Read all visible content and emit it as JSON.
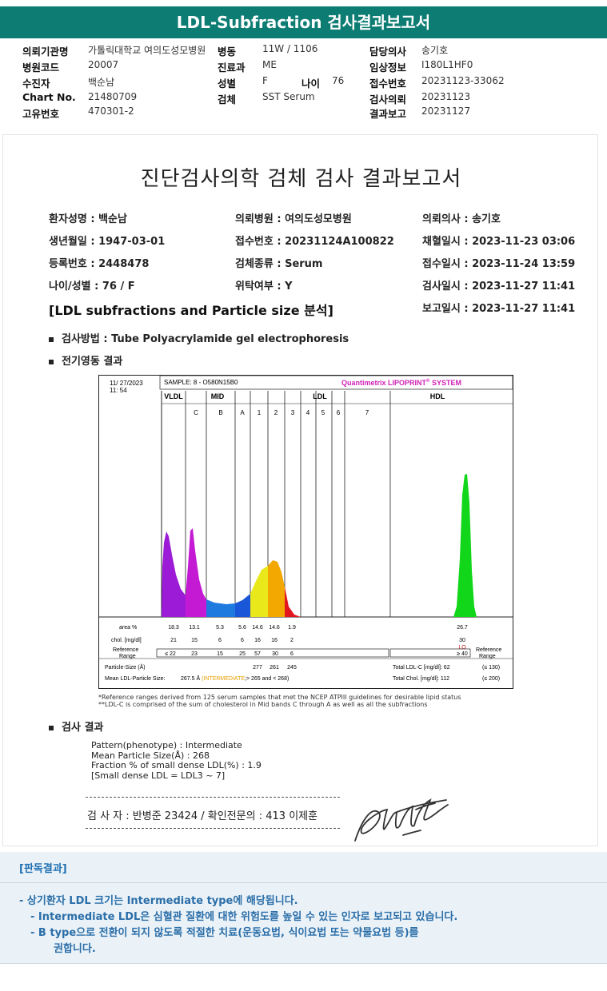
{
  "title": "LDL-Subfraction 검사결과보고서",
  "header": {
    "rows": [
      [
        {
          "label": "의뢰기관명",
          "value": "가톨릭대학교 여의도성모병원"
        },
        {
          "label": "병동",
          "value": "11W / 1106"
        },
        {
          "label": "담당의사",
          "value": "송기호"
        }
      ],
      [
        {
          "label": "병원코드",
          "value": "20007"
        },
        {
          "label": "진료과",
          "value": "ME"
        },
        {
          "label": "임상정보",
          "value": "I180L1HF0"
        }
      ],
      [
        {
          "label": "수진자",
          "value": "백순남"
        },
        {
          "label": "성별",
          "value": "F"
        },
        {
          "label": "접수번호",
          "value": "20231123-33062"
        }
      ],
      [
        {
          "label": "Chart No.",
          "value": "21480709"
        },
        {
          "label": "검체",
          "value": "SST Serum"
        },
        {
          "label": "검사의뢰",
          "value": "20231123"
        }
      ],
      [
        {
          "label": "고유번호",
          "value": "470301-2"
        },
        {
          "label": "",
          "value": ""
        },
        {
          "label": "결과보고",
          "value": "20231127"
        }
      ]
    ],
    "age_label": "나이",
    "age_value": "76"
  },
  "report": {
    "title": "진단검사의학 검체 검사 결과보고서",
    "info": [
      [
        "환자성명 : 백순남",
        "의뢰병원 : 여의도성모병원",
        "의뢰의사 : 송기호"
      ],
      [
        "생년월일 : 1947-03-01",
        "접수번호 : 20231124A100822",
        "채혈일시 : 2023-11-23 03:06"
      ],
      [
        "등록번호 : 2448478",
        "검체종류 : Serum",
        "접수일시 : 2023-11-24 13:59"
      ],
      [
        "나이/성별 : 76 / F",
        "위탁여부 : Y",
        "검사일시 : 2023-11-27 11:41"
      ],
      [
        "",
        "",
        "보고일시 : 2023-11-27 11:41"
      ]
    ],
    "section_title": "[LDL subfractions and Particle size 분석]",
    "method": "검사방법 : Tube Polyacrylamide gel electrophoresis",
    "electro_title": "전기영동 결과",
    "result_title": "검사 결과",
    "results": [
      "Pattern(phenotype) : Intermediate",
      "Mean Particle Size(Å) : 268",
      "Fraction % of small dense LDL(%) : 1.9",
      "[Small dense LDL = LDL3 ~ 7]"
    ],
    "footnotes": [
      "*Reference ranges derived from 125 serum samples that met the NCEP ATPIII guidelines for desirable lipid status",
      "**LDL-C is comprised of the sum of cholesterol in Mid bands C through A as well as all the subfractions"
    ],
    "signature_line": "검 사 자 : 반병준  23424   /  확인전문의 : 413  이제훈"
  },
  "chart_data": {
    "type": "area",
    "date": "11/ 27/2023",
    "time": "11: 54",
    "sample": "SAMPLE:   8 - O580N15B0",
    "brand": "Quantimetrix LIPOPRINT",
    "brand_reg": "®",
    "brand_suffix": " SYSTEM",
    "regions": [
      "VLDL",
      "MID",
      "LDL",
      "HDL"
    ],
    "bands": [
      "C",
      "B",
      "A",
      "1",
      "2",
      "3",
      "4",
      "5",
      "6",
      "7"
    ],
    "row_labels": {
      "area": "area %",
      "chol": "chol. [mg/dl]",
      "ref": "Reference Range",
      "particle": "Particle-Size (Å)",
      "mean": "Mean LDL-Particle Size:"
    },
    "area": [
      "18.3",
      "13.1",
      "5.3",
      "5.6",
      "14.6",
      "14.6",
      "1.9",
      "26.7"
    ],
    "chol": [
      "21",
      "15",
      "6",
      "6",
      "16",
      "16",
      "2",
      "30"
    ],
    "chol_flag": "LO",
    "ref": [
      "≤ 22",
      "23",
      "15",
      "25",
      "57",
      "30",
      "6"
    ],
    "hdl_ref": "≥ 40",
    "particle": [
      "277",
      "261",
      "245"
    ],
    "mean_value": "267.5 Å",
    "mean_class": "(INTERMEDIATE",
    "mean_rest": ";> 265 and < 268)",
    "total_ldl": "Total LDL-C [mg/dl]:  62",
    "total_ldl_ref": "(≤ 130)",
    "total_chol": "Total Chol. [mg/dl]:   112",
    "total_chol_ref": "(≤ 200)",
    "ref_title": "Reference Range",
    "colors": {
      "vldl": "#9b1bd6",
      "midc": "#c41ad4",
      "midb": "#1f7ae0",
      "mida": "#1a56d8",
      "ldl1": "#e8e81a",
      "ldl2": "#f2a800",
      "ldl3": "#e2161e",
      "hdl": "#12d61a",
      "brand": "#d21fb8",
      "mean_class": "#e8a000",
      "lo": "#d11a1a"
    }
  },
  "judgement": {
    "title": "[판독결과]",
    "lines": [
      "-  상기환자 LDL 크기는 Intermediate type에 해당됩니다.",
      "-  Intermediate LDL은 심혈관 질환에 대한 위험도를 높일 수 있는 인자로 보고되고 있습니다.",
      "-  B type으로 전환이 되지 않도록 적절한 치료(운동요법, 식이요법 또는 약물요법 등)를",
      "권합니다."
    ]
  }
}
